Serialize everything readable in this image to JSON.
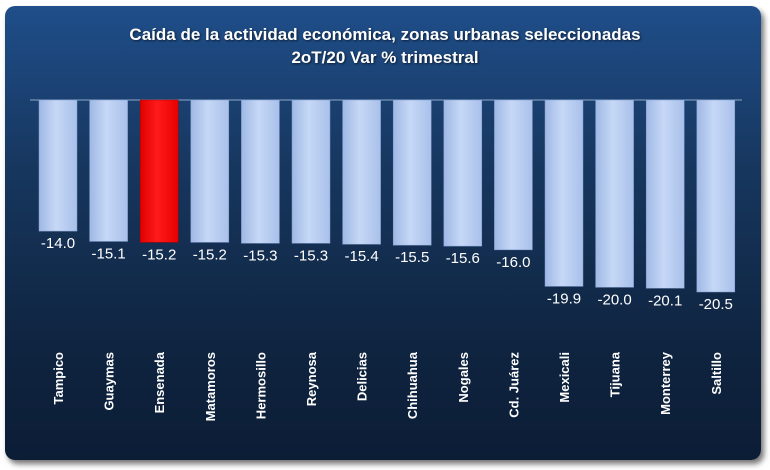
{
  "chart_data": {
    "type": "bar",
    "title": "Caída de la actividad económica, zonas urbanas seleccionadas",
    "subtitle": "2oT/20 Var % trimestral",
    "categories": [
      "Tampico",
      "Guaymas",
      "Ensenada",
      "Matamoros",
      "Hermosillo",
      "Reynosa",
      "Delicias",
      "Chihuahua",
      "Nogales",
      "Cd. Juárez",
      "Mexicali",
      "Tijuana",
      "Monterrey",
      "Saltillo"
    ],
    "values": [
      -14.0,
      -15.1,
      -15.2,
      -15.2,
      -15.3,
      -15.3,
      -15.4,
      -15.5,
      -15.6,
      -16.0,
      -19.9,
      -20.0,
      -20.1,
      -20.5
    ],
    "value_labels": [
      "-14.0",
      "-15.1",
      "-15.2",
      "-15.2",
      "-15.3",
      "-15.3",
      "-15.4",
      "-15.5",
      "-15.6",
      "-16.0",
      "-19.9",
      "-20.0",
      "-20.1",
      "-20.5"
    ],
    "highlight_category": "Ensenada",
    "colors": {
      "bar": "#b9cdf0",
      "highlight": "#ff0000",
      "background": "#17375f",
      "text": "#ffffff"
    },
    "ylim": [
      -20.5,
      0
    ],
    "grid": false,
    "legend": "none"
  }
}
